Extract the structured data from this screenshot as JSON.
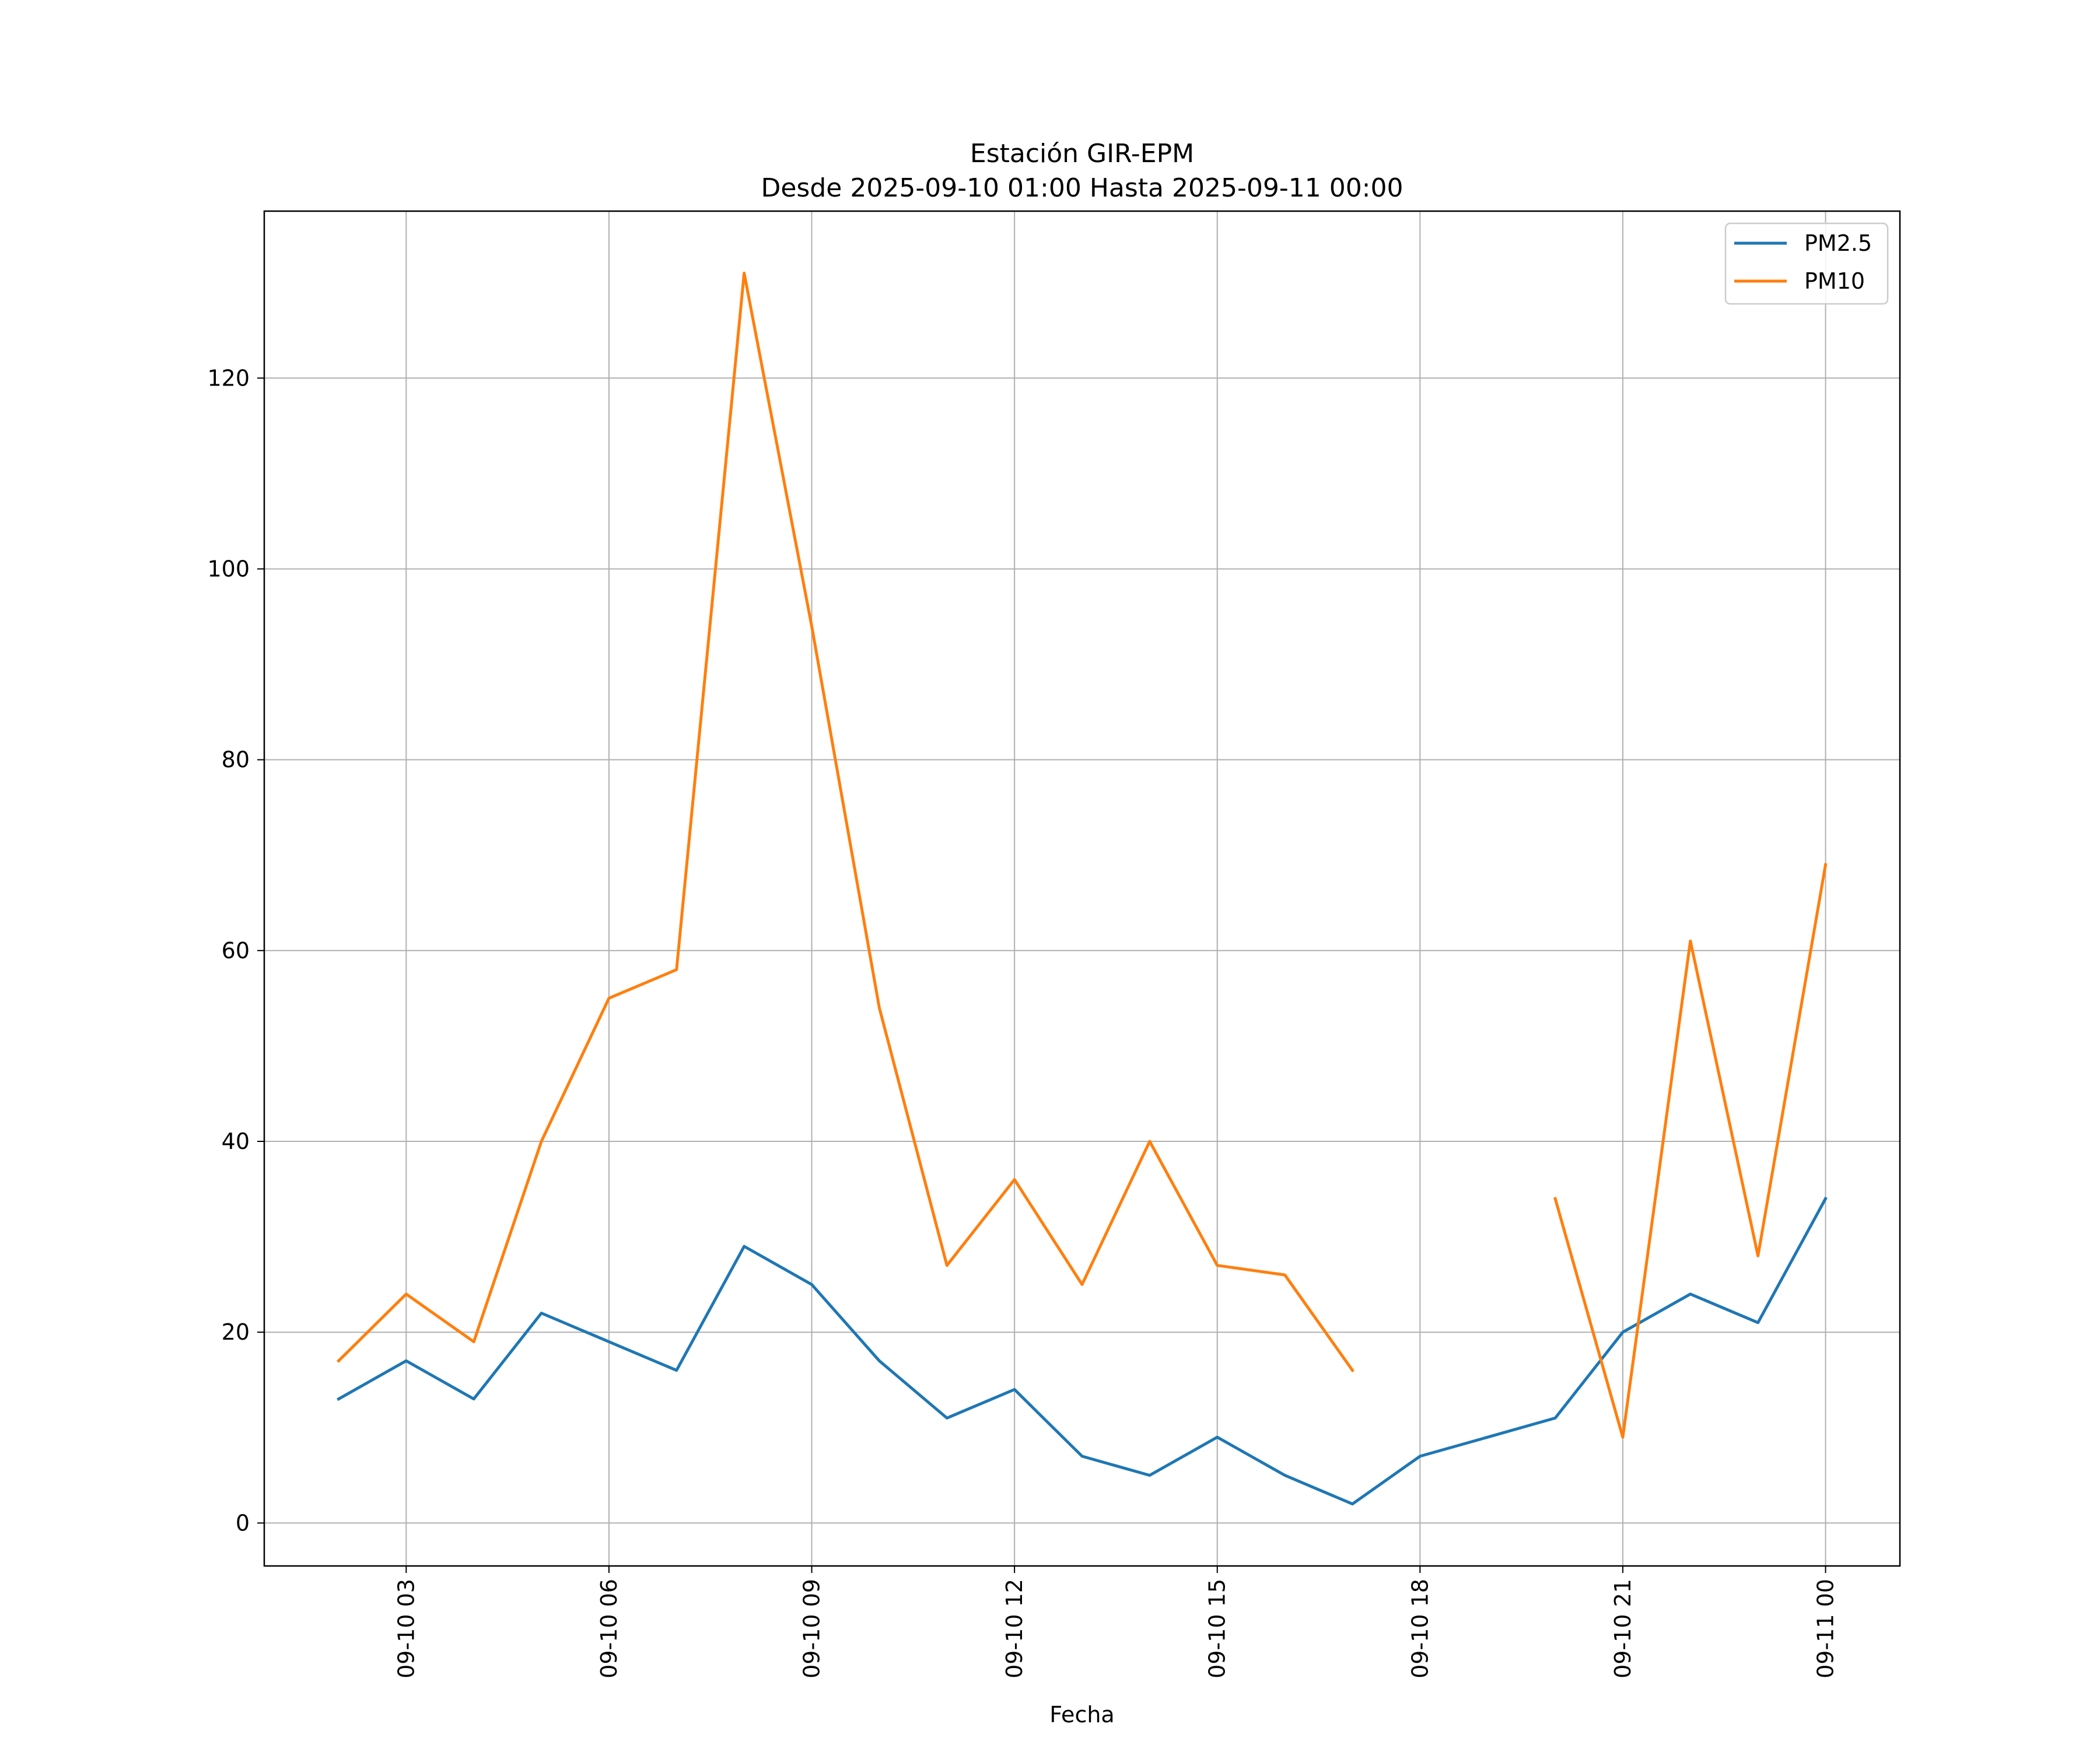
{
  "chart_data": {
    "type": "line",
    "title": "Estación GIR-EPM",
    "subtitle": "Desde 2025-09-10 01:00 Hasta 2025-09-11 00:00",
    "xlabel": "Fecha",
    "ylabel": "",
    "x_unit": "hour",
    "x": [
      2,
      3,
      4,
      5,
      6,
      7,
      8,
      9,
      10,
      11,
      12,
      13,
      14,
      15,
      16,
      17,
      18,
      19,
      20,
      21,
      22,
      23,
      24
    ],
    "xlim": [
      0.9,
      25.1
    ],
    "ylim": [
      -4.5,
      137.5
    ],
    "x_ticks": [
      3,
      6,
      9,
      12,
      15,
      18,
      21,
      24
    ],
    "x_tick_labels": [
      "09-10 03",
      "09-10 06",
      "09-10 09",
      "09-10 12",
      "09-10 15",
      "09-10 18",
      "09-10 21",
      "09-11 00"
    ],
    "y_ticks": [
      0,
      20,
      40,
      60,
      80,
      100,
      120
    ],
    "y_tick_labels": [
      "0",
      "20",
      "40",
      "60",
      "80",
      "100",
      "120"
    ],
    "grid": true,
    "legend_position": "top-right",
    "series": [
      {
        "name": "PM2.5",
        "color": "#1f77b4",
        "values": [
          13,
          17,
          13,
          22,
          19,
          16,
          29,
          25,
          17,
          11,
          14,
          7,
          5,
          9,
          5,
          2,
          7,
          9,
          11,
          20,
          24,
          21,
          34
        ]
      },
      {
        "name": "PM10",
        "color": "#ff7f0e",
        "values": [
          17,
          24,
          19,
          40,
          55,
          58,
          131,
          94,
          54,
          27,
          36,
          25,
          40,
          27,
          26,
          16,
          null,
          null,
          34,
          9,
          61,
          28,
          69
        ]
      }
    ]
  }
}
